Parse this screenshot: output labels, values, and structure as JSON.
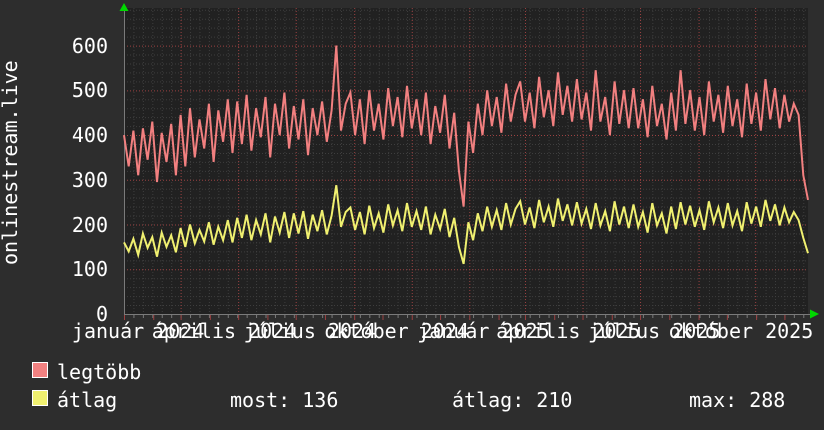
{
  "site_label": "onlinestream.live",
  "legend": [
    {
      "label": "legtöbb",
      "color": "#f28080"
    },
    {
      "label": "átlag",
      "color": "#f0f070"
    }
  ],
  "stats": [
    {
      "label": "most",
      "value": 136,
      "text": "most: 136"
    },
    {
      "label": "átlag",
      "value": 210,
      "text": "átlag: 210"
    },
    {
      "label": "max",
      "value": 288,
      "text": "max: 288"
    }
  ],
  "colors": {
    "background": "#2d2d2d",
    "plot_background": "#212121",
    "grid_minor": "#3e3e3e",
    "grid_major": "#9c4242",
    "axis": "#7a7a7a",
    "arrow": "#00d800",
    "text": "#ffffff",
    "series_max": "#f28080",
    "series_avg": "#f0f070"
  },
  "chart_data": {
    "type": "line",
    "title": "",
    "xlabel": "",
    "ylabel": "",
    "ylim": [
      0,
      684
    ],
    "y_ticks": [
      0,
      100,
      200,
      300,
      400,
      500,
      600
    ],
    "grid": true,
    "legend_position": "bottom-left",
    "days_total": 725,
    "x_tick_labels": [
      {
        "label": "január 2024",
        "day": 15
      },
      {
        "label": "április 2024",
        "day": 106
      },
      {
        "label": "július 2024",
        "day": 197
      },
      {
        "label": "október 2024",
        "day": 289
      },
      {
        "label": "január 2025",
        "day": 381
      },
      {
        "label": "április 2025",
        "day": 471
      },
      {
        "label": "július 2025",
        "day": 562
      },
      {
        "label": "október 2025",
        "day": 654
      }
    ],
    "major_grid_days": [
      0,
      60,
      121,
      182,
      244,
      305,
      366,
      425,
      486,
      547,
      609,
      669
    ],
    "month_start_days": [
      0,
      31,
      60,
      91,
      121,
      152,
      182,
      213,
      244,
      274,
      305,
      335,
      366,
      397,
      425,
      456,
      486,
      517,
      547,
      578,
      609,
      639,
      670,
      700
    ],
    "series": [
      {
        "name": "legtöbb",
        "color": "#f28080",
        "values": [
          400,
          330,
          410,
          310,
          415,
          345,
          430,
          295,
          405,
          340,
          425,
          310,
          445,
          330,
          460,
          350,
          435,
          370,
          470,
          340,
          455,
          385,
          480,
          360,
          475,
          380,
          490,
          365,
          460,
          395,
          485,
          350,
          470,
          400,
          495,
          370,
          465,
          390,
          480,
          355,
          460,
          400,
          475,
          385,
          455,
          600,
          410,
          470,
          495,
          400,
          480,
          380,
          500,
          410,
          470,
          390,
          505,
          420,
          485,
          395,
          510,
          415,
          480,
          400,
          495,
          380,
          465,
          405,
          490,
          370,
          450,
          320,
          240,
          430,
          360,
          470,
          400,
          500,
          420,
          485,
          405,
          515,
          430,
          490,
          520,
          430,
          495,
          415,
          530,
          440,
          500,
          420,
          540,
          445,
          510,
          430,
          525,
          435,
          495,
          410,
          545,
          430,
          485,
          400,
          520,
          425,
          500,
          415,
          505,
          415,
          480,
          395,
          510,
          420,
          470,
          390,
          495,
          410,
          545,
          425,
          500,
          410,
          485,
          400,
          520,
          430,
          490,
          405,
          510,
          420,
          480,
          395,
          515,
          425,
          495,
          410,
          525,
          435,
          505,
          415,
          490,
          430,
          470,
          445,
          310,
          255
        ]
      },
      {
        "name": "átlag",
        "color": "#f0f070",
        "values": [
          160,
          140,
          168,
          132,
          180,
          148,
          172,
          128,
          182,
          150,
          176,
          138,
          192,
          150,
          200,
          158,
          188,
          162,
          205,
          155,
          195,
          165,
          210,
          160,
          215,
          170,
          222,
          165,
          210,
          178,
          225,
          160,
          218,
          182,
          228,
          170,
          225,
          180,
          230,
          168,
          222,
          185,
          232,
          178,
          220,
          288,
          195,
          228,
          238,
          188,
          228,
          178,
          242,
          192,
          225,
          182,
          245,
          198,
          232,
          185,
          248,
          195,
          230,
          188,
          240,
          178,
          222,
          190,
          235,
          172,
          215,
          150,
          112,
          205,
          165,
          225,
          185,
          240,
          195,
          232,
          188,
          248,
          200,
          235,
          252,
          200,
          238,
          192,
          255,
          205,
          240,
          195,
          258,
          208,
          245,
          198,
          250,
          202,
          235,
          190,
          248,
          198,
          230,
          185,
          252,
          200,
          240,
          192,
          245,
          195,
          228,
          182,
          248,
          198,
          225,
          180,
          240,
          190,
          250,
          200,
          242,
          195,
          232,
          188,
          252,
          205,
          238,
          192,
          248,
          198,
          230,
          185,
          250,
          202,
          240,
          195,
          255,
          208,
          245,
          198,
          238,
          205,
          228,
          210,
          170,
          136
        ]
      }
    ],
    "stats_for_series": "átlag",
    "stats": {
      "most": 136,
      "átlag": 210,
      "max": 288
    }
  }
}
